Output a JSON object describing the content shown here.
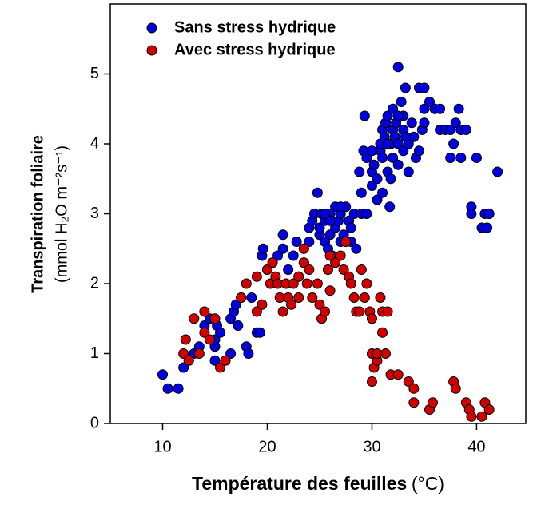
{
  "chart_data": {
    "type": "scatter",
    "y_label": "Transpiration foliaire",
    "y_unit": "(mmol H₂O m⁻²s⁻¹)",
    "x_label": "Température des feuilles",
    "x_unit": "(°C)",
    "xlim": [
      5,
      44.7
    ],
    "ylim": [
      0,
      6
    ],
    "xticks": [
      10,
      20,
      30,
      40
    ],
    "yticks": [
      0,
      1,
      2,
      3,
      4,
      5
    ],
    "legend": "upper left",
    "series": [
      {
        "name": "Sans stress hydrique",
        "color": "#0000e0",
        "x": [
          10,
          10.5,
          11.5,
          12,
          12.5,
          13,
          13.5,
          14,
          14.5,
          15,
          15,
          15.2,
          15.5,
          15,
          16.5,
          16.5,
          16.8,
          17,
          17.2,
          17.5,
          18,
          18.2,
          18.5,
          19,
          19.3,
          19.5,
          19.6,
          20,
          20.5,
          21,
          21.5,
          21.5,
          22,
          22.5,
          22.8,
          23,
          23.5,
          23.5,
          24,
          24,
          24.3,
          24.5,
          24.8,
          25,
          25,
          25.2,
          25.5,
          25.5,
          25.8,
          26,
          26,
          26.2,
          26.5,
          26.5,
          26.8,
          27,
          27,
          27.3,
          27.5,
          27.8,
          28,
          28,
          28.3,
          28.5,
          29,
          28.8,
          29.2,
          29.5,
          29,
          29.3,
          29.5,
          30,
          30,
          30.2,
          30.5,
          30.5,
          30.8,
          30.8,
          31,
          31,
          31,
          31.2,
          31.3,
          31.5,
          31.5,
          31.7,
          31.8,
          31.8,
          32,
          32,
          32,
          32.2,
          32.3,
          32.5,
          32.5,
          32.5,
          32.8,
          33,
          33,
          33,
          33.2,
          33.5,
          33.5,
          33.8,
          34,
          34.2,
          34.5,
          34.5,
          34.8,
          35,
          35,
          35.5,
          36,
          36.5,
          36.5,
          37,
          37.5,
          37.5,
          37.8,
          38,
          38.3,
          38.5,
          38.5,
          39,
          39.5,
          39.5,
          40,
          40.5,
          40.8,
          41,
          41.2,
          42,
          31.5,
          30,
          32.5,
          33.2,
          35,
          27,
          25.5,
          26
        ],
        "values": [
          0.7,
          0.5,
          0.5,
          0.8,
          0.9,
          1.0,
          1.1,
          1.4,
          1.5,
          1.1,
          1.2,
          1.4,
          1.3,
          0.9,
          1.0,
          1.5,
          1.6,
          1.7,
          1.4,
          1.8,
          1.1,
          1.0,
          1.8,
          1.3,
          1.3,
          2.4,
          2.5,
          2.2,
          2.3,
          2.4,
          2.5,
          2.7,
          2.2,
          2.4,
          2.6,
          2.1,
          2.3,
          2.5,
          2.6,
          2.8,
          2.9,
          3.0,
          3.3,
          2.7,
          2.8,
          3.0,
          2.9,
          2.6,
          2.5,
          3.0,
          2.7,
          2.4,
          2.8,
          3.1,
          2.9,
          2.6,
          3.0,
          2.7,
          3.1,
          2.9,
          2.8,
          2.6,
          3.0,
          2.5,
          3.0,
          3.6,
          3.9,
          3.8,
          3.3,
          4.4,
          3.0,
          3.4,
          3.6,
          3.7,
          3.2,
          3.5,
          3.9,
          4.0,
          3.8,
          4.2,
          3.3,
          4.1,
          4.3,
          4.4,
          3.6,
          3.1,
          3.5,
          4.0,
          4.2,
          3.8,
          4.5,
          4.1,
          4.3,
          5.1,
          4.0,
          3.7,
          4.6,
          4.2,
          4.4,
          3.9,
          4.8,
          4.0,
          3.6,
          4.3,
          4.1,
          3.8,
          4.8,
          3.9,
          4.2,
          4.8,
          4.5,
          4.6,
          4.5,
          4.5,
          4.2,
          4.2,
          4.2,
          3.8,
          4.0,
          4.3,
          4.5,
          4.2,
          3.8,
          4.2,
          3.1,
          3.0,
          3.8,
          2.8,
          3.0,
          2.8,
          3.0,
          3.6,
          4.0,
          3.9,
          4.4,
          4.1,
          4.3,
          3.1,
          3.0,
          2.9
        ]
      },
      {
        "name": "Avec stress hydrique",
        "color": "#d00000",
        "x": [
          12,
          12.2,
          12.5,
          13,
          13.5,
          14,
          14,
          14.5,
          15,
          15.5,
          16,
          17.5,
          18,
          19,
          19.5,
          19,
          20,
          20.3,
          20.5,
          20.8,
          21,
          21.2,
          21.5,
          21.8,
          22,
          22.3,
          22.5,
          23,
          23,
          23.5,
          23.8,
          24,
          24.3,
          24.8,
          25,
          25.2,
          25.5,
          25.8,
          26,
          26.5,
          27,
          27.3,
          27.5,
          27.8,
          28,
          28.3,
          28.5,
          28.8,
          29,
          29.3,
          29.5,
          29.8,
          30,
          30,
          30.2,
          30.5,
          30.8,
          31,
          31,
          31.3,
          31.5,
          31.8,
          32.5,
          33.5,
          34,
          34,
          35.5,
          35.8,
          37.8,
          38,
          39,
          39.3,
          39.5,
          40.5,
          40.8,
          41.2,
          30,
          30.5,
          26,
          23.5
        ],
        "values": [
          1.0,
          1.2,
          0.9,
          1.5,
          1.0,
          1.6,
          1.3,
          1.2,
          1.5,
          0.8,
          0.9,
          1.8,
          2.0,
          1.6,
          1.7,
          2.1,
          2.2,
          2.0,
          2.3,
          2.1,
          2.0,
          1.8,
          1.6,
          2.0,
          1.8,
          1.7,
          2.0,
          2.1,
          1.8,
          2.3,
          2.0,
          2.2,
          1.8,
          2.0,
          1.7,
          1.5,
          1.6,
          2.2,
          1.9,
          2.3,
          2.4,
          2.2,
          2.6,
          2.1,
          2.0,
          1.8,
          1.6,
          1.6,
          2.2,
          1.8,
          2.0,
          1.6,
          1.5,
          1.0,
          0.8,
          0.9,
          1.8,
          1.6,
          1.3,
          1.0,
          1.6,
          0.7,
          0.7,
          0.6,
          0.5,
          0.3,
          0.2,
          0.3,
          0.6,
          0.5,
          0.3,
          0.2,
          0.1,
          0.1,
          0.3,
          0.2,
          0.6,
          1.0,
          2.4,
          2.5
        ]
      }
    ]
  }
}
